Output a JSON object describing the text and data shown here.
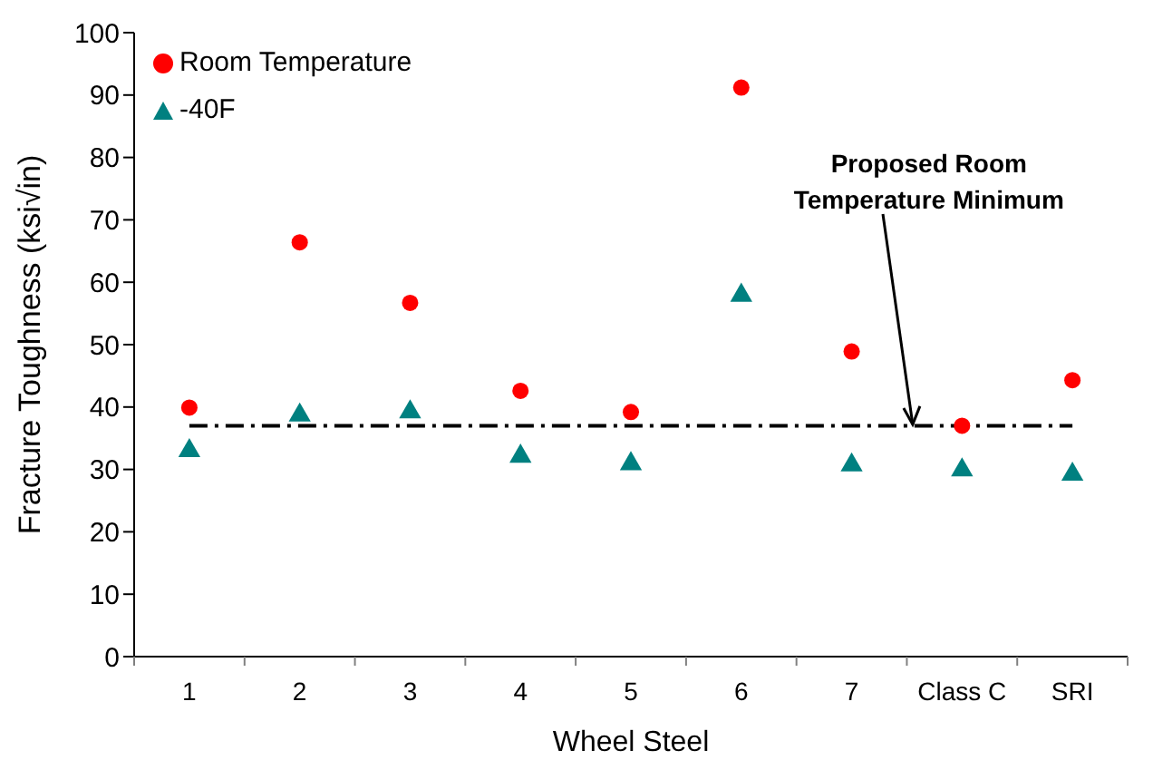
{
  "chart_data": {
    "type": "scatter",
    "xlabel": "Wheel Steel",
    "ylabel": "Fracture Toughness (ksi√in)",
    "categories": [
      "1",
      "2",
      "3",
      "4",
      "5",
      "6",
      "7",
      "Class C",
      "SRI"
    ],
    "series": [
      {
        "name": "Room Temperature",
        "color": "#ff0000",
        "marker": "circle",
        "values": [
          39.9,
          66.4,
          56.7,
          42.6,
          39.2,
          91.2,
          48.9,
          37,
          44.3
        ]
      },
      {
        "name": "-40F",
        "color": "#008080",
        "marker": "triangle",
        "values": [
          33,
          38.7,
          39.2,
          32.1,
          30.9,
          57.9,
          30.7,
          29.9,
          29.2
        ]
      }
    ],
    "ylim": [
      0,
      100
    ],
    "yticks": [
      0,
      10,
      20,
      30,
      40,
      50,
      60,
      70,
      80,
      90,
      100
    ],
    "ref_lines": [
      {
        "axis": "y",
        "value": 37,
        "label": "Proposed Room Temperature Minimum",
        "color": "#000000",
        "line_style": "dashed"
      }
    ],
    "grid": false,
    "legend": "top left"
  }
}
